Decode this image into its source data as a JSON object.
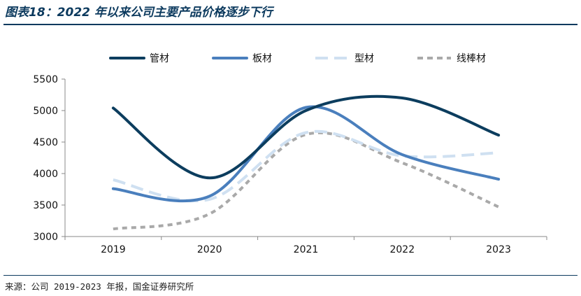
{
  "figure": {
    "title": "图表18：2022 年以来公司主要产品价格逐步下行",
    "source": "来源：公司 2019-2023 年报，国金证券研究所"
  },
  "chart_data": {
    "type": "line",
    "x": [
      "2019",
      "2020",
      "2021",
      "2022",
      "2023"
    ],
    "ylim": [
      3000,
      5500
    ],
    "yticks": [
      3000,
      3500,
      4000,
      4500,
      5000,
      5500
    ],
    "grid": false,
    "legend_position": "top",
    "series": [
      {
        "name": "管材",
        "values": [
          5040,
          3930,
          5000,
          5200,
          4610
        ],
        "color": "#0c3d5e",
        "dash": "solid"
      },
      {
        "name": "板材",
        "values": [
          3760,
          3640,
          5050,
          4300,
          3910
        ],
        "color": "#4a7fbd",
        "dash": "solid"
      },
      {
        "name": "型材",
        "values": [
          3900,
          3590,
          4650,
          4280,
          4330
        ],
        "color": "#cfe0f1",
        "dash": "long-dash"
      },
      {
        "name": "线棒材",
        "values": [
          3120,
          3360,
          4620,
          4170,
          3470
        ],
        "color": "#a9a9a9",
        "dash": "short-dash"
      }
    ]
  }
}
